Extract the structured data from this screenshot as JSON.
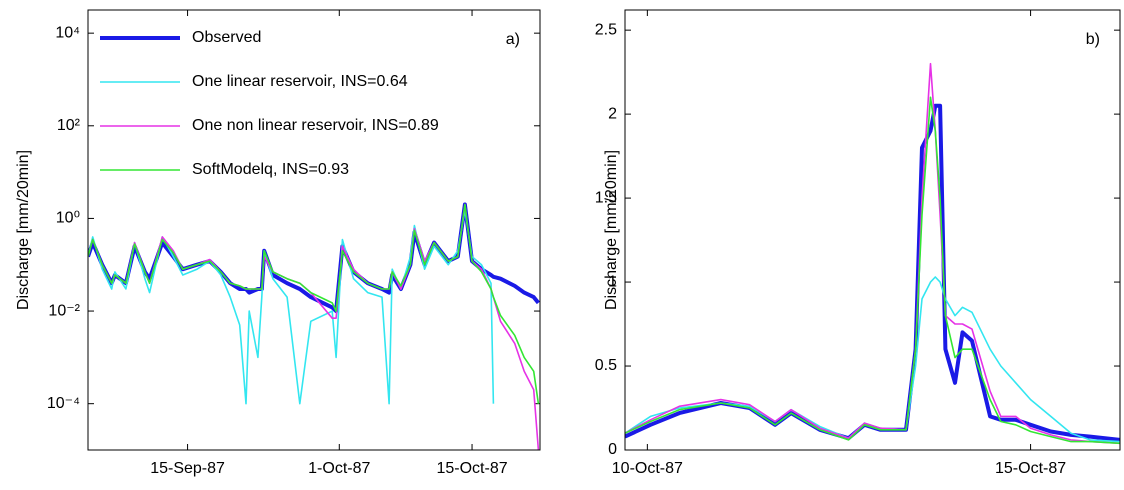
{
  "chart_data": [
    {
      "type": "line",
      "annotation": "a)",
      "ylabel": "Discharge [mm/20min]",
      "yscale": "log",
      "legend": "upper left",
      "xlim": [
        "1987-09-04T12:00",
        "1987-10-22T04:00"
      ],
      "ylim": [
        1e-05,
        31623
      ],
      "xticks": [
        {
          "value": "1987-09-15T00:00",
          "label": "15-Sep-87"
        },
        {
          "value": "1987-10-01T00:00",
          "label": "1-Oct-87"
        },
        {
          "value": "1987-10-15T00:00",
          "label": "15-Oct-87"
        }
      ],
      "yticks": [
        {
          "value": 10000,
          "label": "10⁴"
        },
        {
          "value": 100,
          "label": "10²"
        },
        {
          "value": 1,
          "label": "10⁰"
        },
        {
          "value": 0.01,
          "label": "10⁻²"
        },
        {
          "value": 0.0001,
          "label": "10⁻⁴"
        }
      ],
      "x": [
        "1987-09-04T12:00",
        "1987-09-05T00:00",
        "1987-09-06T00:00",
        "1987-09-07T00:00",
        "1987-09-07T08:00",
        "1987-09-08T12:00",
        "1987-09-09T10:00",
        "1987-09-10T12:00",
        "1987-09-11T00:00",
        "1987-09-12T08:00",
        "1987-09-13T12:00",
        "1987-09-14T12:00",
        "1987-09-16T00:00",
        "1987-09-17T08:00",
        "1987-09-18T12:00",
        "1987-09-19T12:00",
        "1987-09-20T12:00",
        "1987-09-21T04:00",
        "1987-09-21T12:00",
        "1987-09-22T10:00",
        "1987-09-22T20:00",
        "1987-09-23T02:00",
        "1987-09-24T00:00",
        "1987-09-25T12:00",
        "1987-09-26T20:00",
        "1987-09-28T00:00",
        "1987-09-30T06:00",
        "1987-09-30T16:00",
        "1987-10-01T08:00",
        "1987-10-02T12:00",
        "1987-10-04T00:00",
        "1987-10-05T12:00",
        "1987-10-06T06:00",
        "1987-10-06T14:00",
        "1987-10-07T12:00",
        "1987-10-08T12:00",
        "1987-10-08T22:00",
        "1987-10-10T00:00",
        "1987-10-11T00:00",
        "1987-10-12T12:00",
        "1987-10-13T12:00",
        "1987-10-14T06:00",
        "1987-10-15T00:00",
        "1987-10-16T00:00",
        "1987-10-17T00:00",
        "1987-10-17T06:00",
        "1987-10-18T00:00",
        "1987-10-19T12:00",
        "1987-10-20T12:00",
        "1987-10-21T12:00",
        "1987-10-22T00:00"
      ],
      "series": [
        {
          "name": "Observed",
          "color": "#1a1ae6",
          "values": [
            0.15,
            0.3,
            0.1,
            0.04,
            0.06,
            0.04,
            0.25,
            0.07,
            0.05,
            0.3,
            0.15,
            0.08,
            0.1,
            0.12,
            0.07,
            0.04,
            0.03,
            0.03,
            0.025,
            0.03,
            0.03,
            0.2,
            0.06,
            0.04,
            0.03,
            0.02,
            0.012,
            0.01,
            0.25,
            0.07,
            0.04,
            0.03,
            0.025,
            0.06,
            0.03,
            0.1,
            0.5,
            0.1,
            0.3,
            0.12,
            0.15,
            2.0,
            0.12,
            0.08,
            0.06,
            0.055,
            0.05,
            0.035,
            0.025,
            0.02,
            0.015
          ]
        },
        {
          "name": "One linear reservoir, INS=0.64",
          "color": "#33e6f0",
          "values": [
            0.15,
            0.4,
            0.08,
            0.03,
            0.07,
            0.03,
            0.3,
            0.05,
            0.025,
            0.4,
            0.15,
            0.06,
            0.08,
            0.12,
            0.06,
            0.02,
            0.005,
            0.0001,
            0.01,
            0.001,
            0.02,
            0.2,
            0.05,
            0.02,
            0.0001,
            0.006,
            0.01,
            0.001,
            0.35,
            0.05,
            0.025,
            0.02,
            0.0001,
            0.08,
            0.03,
            0.15,
            0.7,
            0.08,
            0.25,
            0.1,
            0.2,
            1.5,
            0.15,
            0.1,
            0.04,
            0.0001,
            null,
            null,
            null,
            null,
            null
          ]
        },
        {
          "name": "One non linear reservoir, INS=0.89",
          "color": "#e632e6",
          "values": [
            0.15,
            0.35,
            0.1,
            0.04,
            0.06,
            0.04,
            0.3,
            0.07,
            0.04,
            0.4,
            0.2,
            0.08,
            0.1,
            0.13,
            0.07,
            0.04,
            0.035,
            0.03,
            0.03,
            0.03,
            0.03,
            0.15,
            0.07,
            0.05,
            0.04,
            0.025,
            0.007,
            0.007,
            0.25,
            0.08,
            0.04,
            0.03,
            0.03,
            0.07,
            0.03,
            0.1,
            0.6,
            0.12,
            0.3,
            0.12,
            0.15,
            2.0,
            0.12,
            0.08,
            0.03,
            0.02,
            0.006,
            0.002,
            0.0005,
            0.0002,
            1e-05
          ]
        },
        {
          "name": "SoftModelq, INS=0.93",
          "color": "#33e633",
          "values": [
            0.15,
            0.35,
            0.1,
            0.04,
            0.06,
            0.04,
            0.28,
            0.07,
            0.04,
            0.35,
            0.18,
            0.08,
            0.1,
            0.12,
            0.07,
            0.04,
            0.035,
            0.03,
            0.03,
            0.03,
            0.03,
            0.2,
            0.07,
            0.05,
            0.04,
            0.025,
            0.015,
            0.01,
            0.2,
            0.07,
            0.04,
            0.03,
            0.03,
            0.07,
            0.035,
            0.1,
            0.55,
            0.1,
            0.3,
            0.12,
            0.15,
            2.0,
            0.12,
            0.07,
            0.03,
            0.02,
            0.008,
            0.003,
            0.001,
            0.0005,
            0.0001
          ]
        }
      ]
    },
    {
      "type": "line",
      "annotation": "b)",
      "ylabel": "Discharge [mm/20min]",
      "xlim": [
        "1987-10-09T17:00",
        "1987-10-16T04:00"
      ],
      "ylim": [
        0,
        2.62
      ],
      "xticks": [
        {
          "value": "1987-10-10T00:00",
          "label": "10-Oct-87"
        },
        {
          "value": "1987-10-15T00:00",
          "label": "15-Oct-87"
        }
      ],
      "yticks": [
        0,
        0.5,
        1,
        1.5,
        2,
        2.5
      ],
      "x": [
        "1987-10-09T17:00",
        "1987-10-10T01:00",
        "1987-10-10T10:00",
        "1987-10-10T23:00",
        "1987-10-11T08:00",
        "1987-10-11T16:00",
        "1987-10-11T21:00",
        "1987-10-12T06:00",
        "1987-10-12T15:00",
        "1987-10-12T20:00",
        "1987-10-13T01:00",
        "1987-10-13T09:00",
        "1987-10-13T12:00",
        "1987-10-13T14:00",
        "1987-10-13T16:40",
        "1987-10-13T18:10",
        "1987-10-13T19:40",
        "1987-10-13T21:20",
        "1987-10-14T00:20",
        "1987-10-14T02:40",
        "1987-10-14T05:40",
        "1987-10-14T11:20",
        "1987-10-14T14:40",
        "1987-10-14T19:20",
        "1987-10-15T00:00",
        "1987-10-15T06:20",
        "1987-10-15T12:40",
        "1987-10-15T18:40",
        "1987-10-16T04:00"
      ],
      "series": [
        {
          "color": "#1a1ae6",
          "values": [
            0.08,
            0.15,
            0.22,
            0.28,
            0.25,
            0.15,
            0.22,
            0.12,
            0.07,
            0.15,
            0.12,
            0.12,
            0.6,
            1.8,
            1.9,
            2.05,
            2.05,
            0.6,
            0.4,
            0.7,
            0.65,
            0.2,
            0.18,
            0.18,
            0.15,
            0.11,
            0.09,
            0.08,
            0.06
          ]
        },
        {
          "color": "#33e6f0",
          "values": [
            0.1,
            0.2,
            0.25,
            0.28,
            0.26,
            0.17,
            0.24,
            0.14,
            0.07,
            0.16,
            0.13,
            0.12,
            0.5,
            0.9,
            1.0,
            1.03,
            1.0,
            0.9,
            0.8,
            0.85,
            0.82,
            0.6,
            0.5,
            0.4,
            0.3,
            0.2,
            0.1,
            0.06,
            0.05
          ]
        },
        {
          "color": "#e632e6",
          "values": [
            0.1,
            0.18,
            0.26,
            0.3,
            0.27,
            0.17,
            0.24,
            0.13,
            0.07,
            0.16,
            0.13,
            0.12,
            0.6,
            1.5,
            2.3,
            1.9,
            1.4,
            0.8,
            0.75,
            0.75,
            0.72,
            0.35,
            0.2,
            0.2,
            0.13,
            0.09,
            0.06,
            0.05,
            0.04
          ]
        },
        {
          "color": "#33e633",
          "values": [
            0.1,
            0.17,
            0.24,
            0.28,
            0.25,
            0.15,
            0.22,
            0.12,
            0.06,
            0.15,
            0.12,
            0.12,
            0.6,
            1.4,
            2.1,
            1.9,
            1.5,
            0.8,
            0.55,
            0.6,
            0.6,
            0.3,
            0.17,
            0.15,
            0.11,
            0.08,
            0.05,
            0.05,
            0.04
          ]
        }
      ]
    }
  ]
}
